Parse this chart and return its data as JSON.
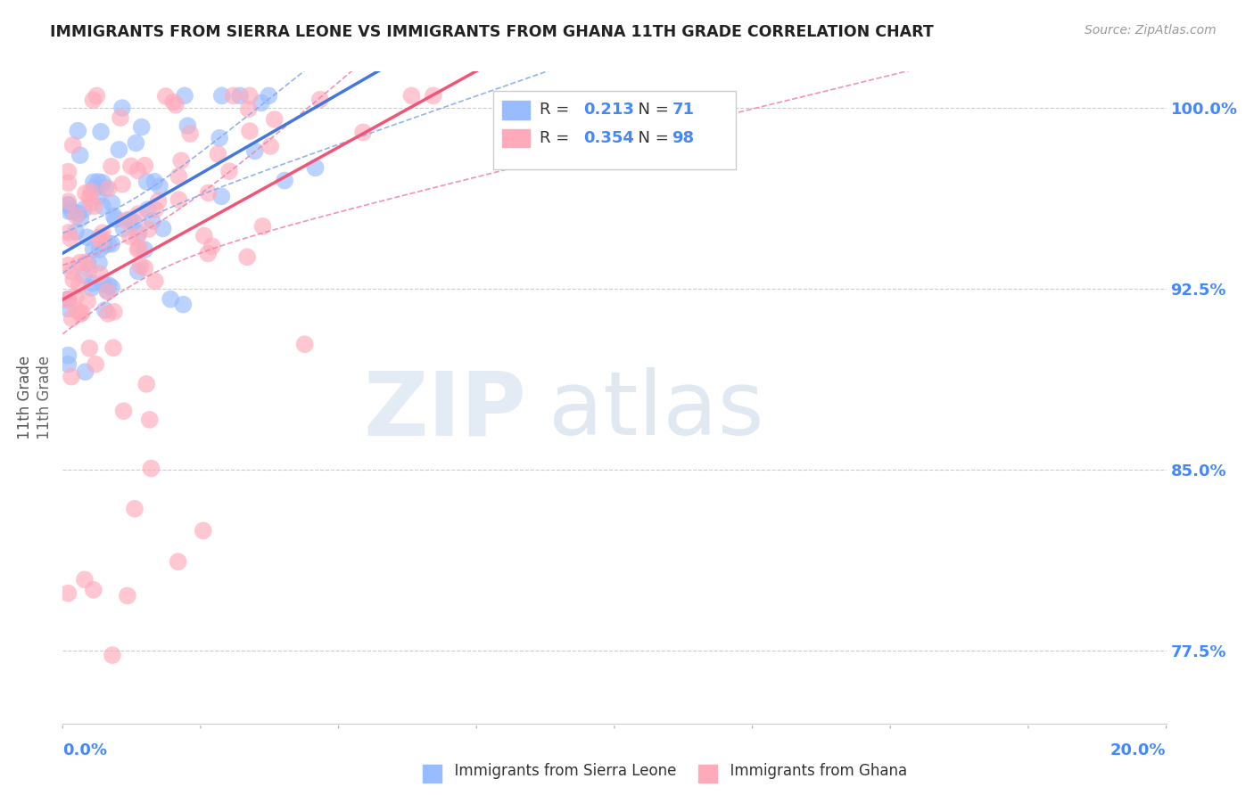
{
  "title": "IMMIGRANTS FROM SIERRA LEONE VS IMMIGRANTS FROM GHANA 11TH GRADE CORRELATION CHART",
  "source": "Source: ZipAtlas.com",
  "ylabel": "11th Grade",
  "ytick_vals": [
    0.775,
    0.85,
    0.925,
    1.0
  ],
  "ytick_labels": [
    "77.5%",
    "85.0%",
    "92.5%",
    "100.0%"
  ],
  "xlim": [
    0.0,
    0.2
  ],
  "ylim": [
    0.745,
    1.015
  ],
  "legend_r_sierra": "0.213",
  "legend_n_sierra": "71",
  "legend_r_ghana": "0.354",
  "legend_n_ghana": "98",
  "color_sierra": "#99BBFF",
  "color_ghana": "#FFAABB",
  "reg_sierra_color": "#4477DD",
  "reg_ghana_color": "#EE5577",
  "conf_sierra_color": "#88AAEE",
  "conf_ghana_color": "#EE88AA",
  "watermark_zip": "ZIP",
  "watermark_atlas": "atlas",
  "background_color": "#FFFFFF",
  "grid_color": "#CCCCCC",
  "tick_color": "#4488FF",
  "title_color": "#222222",
  "source_color": "#999999"
}
